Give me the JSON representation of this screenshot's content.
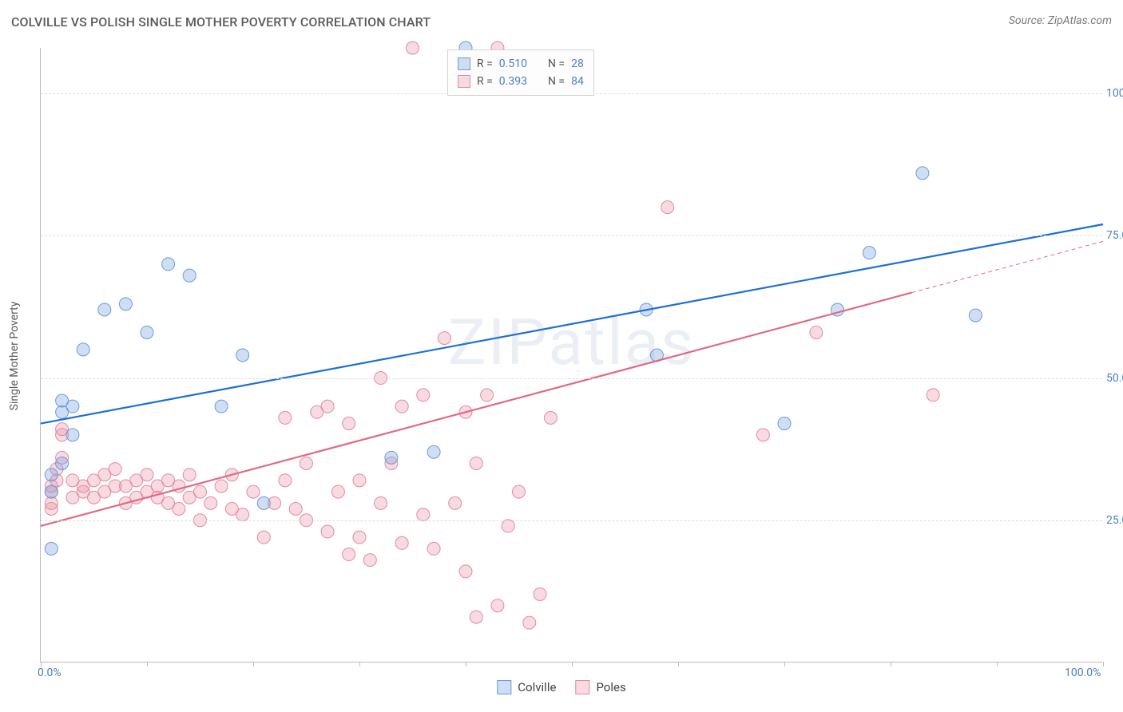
{
  "title": "COLVILLE VS POLISH SINGLE MOTHER POVERTY CORRELATION CHART",
  "source": "Source: ZipAtlas.com",
  "watermark": "ZIPatlas",
  "y_axis_title": "Single Mother Poverty",
  "chart": {
    "type": "scatter",
    "xlim": [
      0,
      100
    ],
    "ylim": [
      0,
      108
    ],
    "x_ticks": [
      0,
      100
    ],
    "x_tick_labels": [
      "0.0%",
      "100.0%"
    ],
    "x_minor_tick_step": 10,
    "y_ticks": [
      25,
      50,
      75,
      100
    ],
    "y_tick_labels": [
      "25.0%",
      "50.0%",
      "75.0%",
      "100.0%"
    ],
    "grid_color": "#dddddd",
    "axis_color": "#bbbbbb",
    "background": "#ffffff",
    "tick_label_color": "#4a7ec7",
    "tick_label_fontsize": 14,
    "title_color": "#5a5a5a",
    "title_fontsize": 16
  },
  "series": {
    "colville": {
      "label": "Colville",
      "fill": "rgba(120,160,220,0.35)",
      "stroke": "#6a9bd8",
      "r": 8,
      "R": "0.510",
      "N": "28",
      "trend": {
        "x1": 0,
        "y1": 42,
        "x2": 100,
        "y2": 77,
        "color": "#1f6fd6",
        "width": 2.2,
        "dash_from_x": null
      },
      "points": [
        [
          1,
          20
        ],
        [
          1,
          30
        ],
        [
          1,
          33
        ],
        [
          2,
          35
        ],
        [
          3,
          40
        ],
        [
          2,
          44
        ],
        [
          3,
          45
        ],
        [
          2,
          46
        ],
        [
          4,
          55
        ],
        [
          6,
          62
        ],
        [
          8,
          63
        ],
        [
          10,
          58
        ],
        [
          12,
          70
        ],
        [
          14,
          68
        ],
        [
          17,
          45
        ],
        [
          19,
          54
        ],
        [
          21,
          28
        ],
        [
          33,
          36
        ],
        [
          37,
          37
        ],
        [
          40,
          108
        ],
        [
          44,
          106
        ],
        [
          57,
          62
        ],
        [
          58,
          54
        ],
        [
          70,
          42
        ],
        [
          75,
          62
        ],
        [
          78,
          72
        ],
        [
          83,
          86
        ],
        [
          88,
          61
        ]
      ]
    },
    "poles": {
      "label": "Poles",
      "fill": "rgba(235,150,170,0.35)",
      "stroke": "#e38aa0",
      "r": 8,
      "R": "0.393",
      "N": "84",
      "trend": {
        "x1": 0,
        "y1": 24,
        "x2": 100,
        "y2": 74,
        "color": "#e06a88",
        "width": 2.2,
        "dash_from_x": 82
      },
      "points": [
        [
          1,
          27
        ],
        [
          1,
          28
        ],
        [
          1,
          30
        ],
        [
          1,
          31
        ],
        [
          1.5,
          32
        ],
        [
          1.5,
          34
        ],
        [
          2,
          36
        ],
        [
          2,
          40
        ],
        [
          2,
          41
        ],
        [
          3,
          29
        ],
        [
          3,
          32
        ],
        [
          4,
          30
        ],
        [
          4,
          31
        ],
        [
          5,
          29
        ],
        [
          5,
          32
        ],
        [
          6,
          30
        ],
        [
          6,
          33
        ],
        [
          7,
          31
        ],
        [
          7,
          34
        ],
        [
          8,
          28
        ],
        [
          8,
          31
        ],
        [
          9,
          29
        ],
        [
          9,
          32
        ],
        [
          10,
          30
        ],
        [
          10,
          33
        ],
        [
          11,
          29
        ],
        [
          11,
          31
        ],
        [
          12,
          28
        ],
        [
          12,
          32
        ],
        [
          13,
          27
        ],
        [
          13,
          31
        ],
        [
          14,
          29
        ],
        [
          14,
          33
        ],
        [
          15,
          25
        ],
        [
          15,
          30
        ],
        [
          16,
          28
        ],
        [
          17,
          31
        ],
        [
          18,
          27
        ],
        [
          18,
          33
        ],
        [
          19,
          26
        ],
        [
          20,
          30
        ],
        [
          21,
          22
        ],
        [
          22,
          28
        ],
        [
          23,
          32
        ],
        [
          23,
          43
        ],
        [
          24,
          27
        ],
        [
          25,
          25
        ],
        [
          25,
          35
        ],
        [
          26,
          44
        ],
        [
          27,
          23
        ],
        [
          27,
          45
        ],
        [
          28,
          30
        ],
        [
          29,
          19
        ],
        [
          29,
          42
        ],
        [
          30,
          22
        ],
        [
          30,
          32
        ],
        [
          31,
          18
        ],
        [
          32,
          28
        ],
        [
          32,
          50
        ],
        [
          33,
          35
        ],
        [
          34,
          21
        ],
        [
          34,
          45
        ],
        [
          35,
          108
        ],
        [
          36,
          26
        ],
        [
          36,
          47
        ],
        [
          37,
          20
        ],
        [
          38,
          57
        ],
        [
          39,
          28
        ],
        [
          40,
          16
        ],
        [
          40,
          44
        ],
        [
          41,
          8
        ],
        [
          41,
          35
        ],
        [
          42,
          47
        ],
        [
          43,
          10
        ],
        [
          43,
          108
        ],
        [
          44,
          24
        ],
        [
          45,
          30
        ],
        [
          46,
          7
        ],
        [
          47,
          12
        ],
        [
          48,
          43
        ],
        [
          59,
          80
        ],
        [
          68,
          40
        ],
        [
          73,
          58
        ],
        [
          84,
          47
        ]
      ]
    }
  },
  "legend_top": {
    "r_label": "R =",
    "n_label": "N =",
    "text_color": "#555555",
    "value_color": "#4a7ec7"
  },
  "legend_bottom": {
    "items": [
      "colville",
      "poles"
    ]
  }
}
